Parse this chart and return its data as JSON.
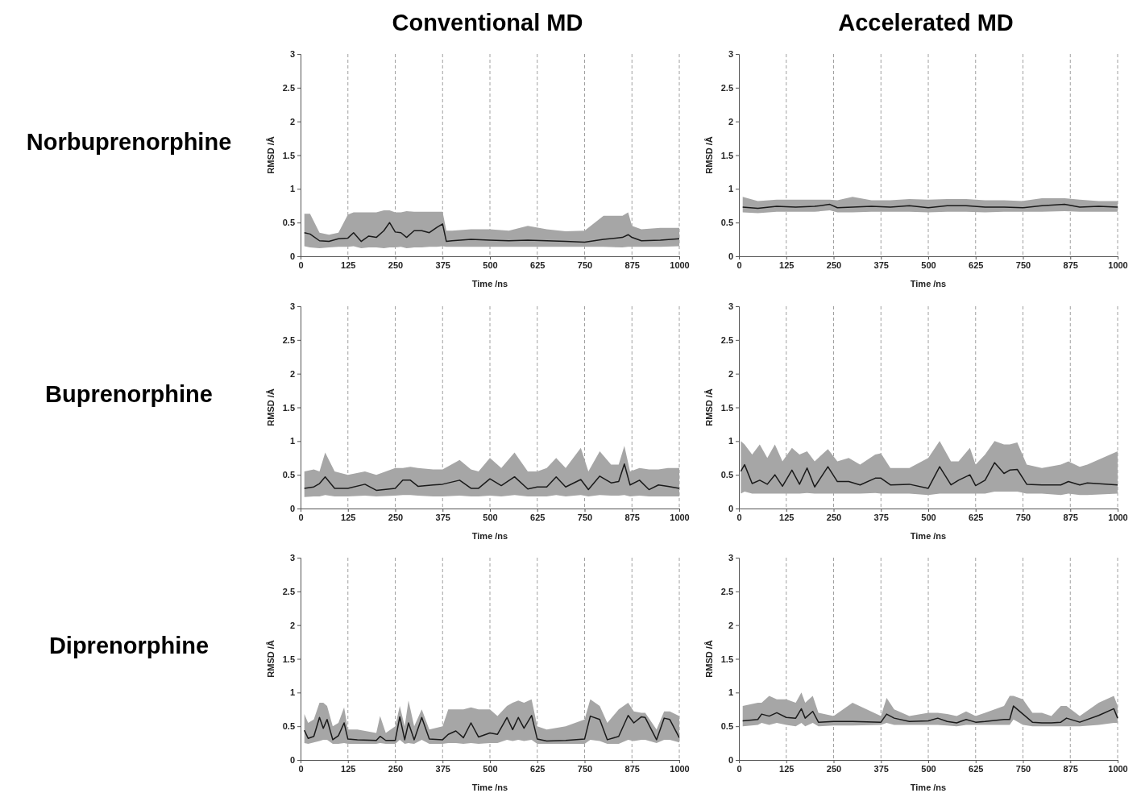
{
  "chart_data": [
    {
      "type": "line",
      "title": "Conventional MD",
      "annotations": [
        "Norbuprenorphine"
      ],
      "xlabel": "Time /ns",
      "ylabel": "RMSD /Å",
      "xlim": [
        0,
        1000
      ],
      "ylim": [
        0,
        3
      ],
      "xticks": [
        0,
        125,
        250,
        375,
        500,
        625,
        750,
        875,
        1000
      ],
      "yticks": [
        0,
        0.5,
        1,
        1.5,
        2,
        2.5,
        3
      ],
      "grid": "x",
      "x": [
        10,
        25,
        50,
        75,
        100,
        125,
        140,
        160,
        180,
        200,
        220,
        235,
        250,
        265,
        280,
        300,
        320,
        340,
        360,
        375,
        385,
        400,
        450,
        500,
        550,
        600,
        650,
        700,
        750,
        800,
        850,
        865,
        875,
        900,
        950,
        1000
      ],
      "series": [
        {
          "color": "#1a1a1a",
          "values": [
            0.35,
            0.33,
            0.23,
            0.22,
            0.26,
            0.27,
            0.35,
            0.22,
            0.3,
            0.28,
            0.38,
            0.5,
            0.36,
            0.35,
            0.28,
            0.38,
            0.38,
            0.35,
            0.43,
            0.48,
            0.22,
            0.23,
            0.25,
            0.24,
            0.23,
            0.24,
            0.23,
            0.22,
            0.21,
            0.25,
            0.28,
            0.32,
            0.28,
            0.23,
            0.24,
            0.26
          ],
          "lower": [
            0.15,
            0.13,
            0.12,
            0.13,
            0.14,
            0.14,
            0.15,
            0.12,
            0.13,
            0.13,
            0.12,
            0.13,
            0.13,
            0.14,
            0.12,
            0.13,
            0.13,
            0.14,
            0.14,
            0.15,
            0.14,
            0.14,
            0.14,
            0.14,
            0.14,
            0.14,
            0.14,
            0.14,
            0.14,
            0.14,
            0.13,
            0.14,
            0.14,
            0.14,
            0.14,
            0.15
          ],
          "upper": [
            0.63,
            0.63,
            0.35,
            0.32,
            0.35,
            0.62,
            0.65,
            0.65,
            0.65,
            0.65,
            0.68,
            0.68,
            0.65,
            0.65,
            0.67,
            0.66,
            0.66,
            0.66,
            0.66,
            0.66,
            0.38,
            0.38,
            0.4,
            0.4,
            0.38,
            0.45,
            0.4,
            0.37,
            0.38,
            0.6,
            0.6,
            0.65,
            0.45,
            0.4,
            0.42,
            0.42
          ]
        }
      ]
    },
    {
      "type": "line",
      "title": "Accelerated MD",
      "xlabel": "Time /ns",
      "ylabel": "RMSD /Å",
      "xlim": [
        0,
        1000
      ],
      "ylim": [
        0,
        3
      ],
      "xticks": [
        0,
        125,
        250,
        375,
        500,
        625,
        750,
        875,
        1000
      ],
      "yticks": [
        0,
        0.5,
        1,
        1.5,
        2,
        2.5,
        3
      ],
      "grid": "x",
      "x": [
        10,
        50,
        100,
        150,
        200,
        240,
        260,
        300,
        350,
        400,
        450,
        500,
        550,
        600,
        650,
        700,
        750,
        800,
        860,
        900,
        950,
        1000
      ],
      "series": [
        {
          "color": "#1a1a1a",
          "values": [
            0.73,
            0.71,
            0.74,
            0.73,
            0.74,
            0.77,
            0.72,
            0.73,
            0.74,
            0.73,
            0.75,
            0.72,
            0.75,
            0.75,
            0.73,
            0.73,
            0.72,
            0.75,
            0.77,
            0.73,
            0.74,
            0.73
          ],
          "lower": [
            0.65,
            0.64,
            0.66,
            0.66,
            0.66,
            0.68,
            0.65,
            0.65,
            0.66,
            0.66,
            0.66,
            0.65,
            0.66,
            0.66,
            0.65,
            0.66,
            0.66,
            0.66,
            0.67,
            0.66,
            0.66,
            0.66
          ],
          "upper": [
            0.88,
            0.82,
            0.84,
            0.84,
            0.84,
            0.84,
            0.83,
            0.88,
            0.83,
            0.83,
            0.85,
            0.84,
            0.85,
            0.85,
            0.83,
            0.83,
            0.82,
            0.86,
            0.86,
            0.84,
            0.82,
            0.82
          ]
        }
      ]
    },
    {
      "type": "line",
      "annotations": [
        "Buprenorphine"
      ],
      "xlabel": "Time /ns",
      "ylabel": "RMSD /Å",
      "xlim": [
        0,
        1000
      ],
      "ylim": [
        0,
        3
      ],
      "xticks": [
        0,
        125,
        250,
        375,
        500,
        625,
        750,
        875,
        1000
      ],
      "yticks": [
        0,
        0.5,
        1,
        1.5,
        2,
        2.5,
        3
      ],
      "grid": "x",
      "x": [
        10,
        35,
        50,
        65,
        90,
        125,
        170,
        200,
        250,
        270,
        290,
        310,
        350,
        375,
        420,
        450,
        470,
        500,
        530,
        565,
        600,
        625,
        650,
        675,
        700,
        740,
        760,
        790,
        820,
        840,
        855,
        870,
        895,
        920,
        945,
        970,
        1000
      ],
      "series": [
        {
          "color": "#1a1a1a",
          "values": [
            0.3,
            0.32,
            0.37,
            0.47,
            0.3,
            0.3,
            0.36,
            0.27,
            0.3,
            0.42,
            0.42,
            0.33,
            0.35,
            0.36,
            0.42,
            0.3,
            0.3,
            0.44,
            0.34,
            0.47,
            0.29,
            0.32,
            0.32,
            0.47,
            0.32,
            0.43,
            0.28,
            0.48,
            0.38,
            0.4,
            0.66,
            0.35,
            0.42,
            0.28,
            0.35,
            0.33,
            0.3
          ],
          "lower": [
            0.17,
            0.18,
            0.18,
            0.2,
            0.18,
            0.18,
            0.19,
            0.18,
            0.19,
            0.2,
            0.2,
            0.19,
            0.18,
            0.18,
            0.19,
            0.18,
            0.18,
            0.19,
            0.18,
            0.2,
            0.18,
            0.18,
            0.18,
            0.2,
            0.18,
            0.2,
            0.18,
            0.2,
            0.19,
            0.19,
            0.2,
            0.18,
            0.19,
            0.18,
            0.18,
            0.18,
            0.18
          ],
          "upper": [
            0.55,
            0.58,
            0.55,
            0.83,
            0.55,
            0.5,
            0.55,
            0.5,
            0.6,
            0.6,
            0.62,
            0.6,
            0.58,
            0.58,
            0.72,
            0.58,
            0.55,
            0.75,
            0.6,
            0.83,
            0.55,
            0.55,
            0.6,
            0.75,
            0.6,
            0.9,
            0.55,
            0.85,
            0.65,
            0.65,
            0.93,
            0.55,
            0.6,
            0.58,
            0.58,
            0.6,
            0.6
          ]
        }
      ]
    },
    {
      "type": "line",
      "xlabel": "Time /ns",
      "ylabel": "RMSD /Å",
      "xlim": [
        0,
        1000
      ],
      "ylim": [
        0,
        3
      ],
      "xticks": [
        0,
        125,
        250,
        375,
        500,
        625,
        750,
        875,
        1000
      ],
      "yticks": [
        0,
        0.5,
        1,
        1.5,
        2,
        2.5,
        3
      ],
      "grid": "x",
      "x": [
        5,
        15,
        35,
        55,
        75,
        95,
        115,
        140,
        160,
        180,
        200,
        235,
        260,
        290,
        320,
        360,
        375,
        400,
        450,
        500,
        530,
        560,
        580,
        610,
        625,
        650,
        675,
        700,
        715,
        735,
        760,
        800,
        850,
        870,
        900,
        920,
        1000
      ],
      "series": [
        {
          "color": "#1a1a1a",
          "values": [
            0.55,
            0.65,
            0.37,
            0.42,
            0.36,
            0.5,
            0.33,
            0.57,
            0.36,
            0.6,
            0.32,
            0.62,
            0.4,
            0.4,
            0.35,
            0.45,
            0.45,
            0.35,
            0.36,
            0.3,
            0.62,
            0.35,
            0.42,
            0.5,
            0.34,
            0.42,
            0.68,
            0.52,
            0.57,
            0.58,
            0.36,
            0.35,
            0.35,
            0.4,
            0.35,
            0.38,
            0.35
          ],
          "lower": [
            0.22,
            0.25,
            0.22,
            0.22,
            0.22,
            0.22,
            0.22,
            0.22,
            0.22,
            0.23,
            0.22,
            0.22,
            0.22,
            0.22,
            0.22,
            0.23,
            0.22,
            0.22,
            0.22,
            0.2,
            0.22,
            0.22,
            0.22,
            0.22,
            0.22,
            0.22,
            0.25,
            0.25,
            0.25,
            0.25,
            0.22,
            0.22,
            0.2,
            0.22,
            0.2,
            0.2,
            0.22
          ],
          "upper": [
            1.0,
            0.95,
            0.8,
            0.95,
            0.75,
            0.95,
            0.7,
            0.9,
            0.8,
            0.85,
            0.7,
            0.88,
            0.7,
            0.75,
            0.65,
            0.8,
            0.82,
            0.6,
            0.6,
            0.75,
            1.0,
            0.7,
            0.7,
            0.9,
            0.65,
            0.8,
            1.0,
            0.95,
            0.95,
            0.98,
            0.65,
            0.6,
            0.65,
            0.7,
            0.62,
            0.65,
            0.85
          ]
        }
      ]
    },
    {
      "type": "line",
      "annotations": [
        "Diprenorphine"
      ],
      "xlabel": "Time /ns",
      "ylabel": "RMSD /Å",
      "xlim": [
        0,
        1000
      ],
      "ylim": [
        0,
        3
      ],
      "xticks": [
        0,
        125,
        250,
        375,
        500,
        625,
        750,
        875,
        1000
      ],
      "yticks": [
        0,
        0.5,
        1,
        1.5,
        2,
        2.5,
        3
      ],
      "grid": "x",
      "x": [
        10,
        20,
        35,
        50,
        60,
        70,
        85,
        100,
        115,
        125,
        150,
        200,
        210,
        225,
        250,
        262,
        275,
        285,
        300,
        320,
        340,
        375,
        390,
        410,
        430,
        450,
        470,
        500,
        520,
        545,
        560,
        575,
        590,
        610,
        625,
        650,
        700,
        750,
        765,
        790,
        810,
        840,
        865,
        880,
        900,
        910,
        940,
        960,
        975,
        1000
      ],
      "series": [
        {
          "color": "#1a1a1a",
          "values": [
            0.44,
            0.32,
            0.35,
            0.63,
            0.47,
            0.6,
            0.3,
            0.36,
            0.55,
            0.31,
            0.3,
            0.29,
            0.35,
            0.29,
            0.29,
            0.64,
            0.3,
            0.55,
            0.3,
            0.63,
            0.31,
            0.3,
            0.38,
            0.43,
            0.33,
            0.55,
            0.34,
            0.4,
            0.38,
            0.63,
            0.45,
            0.63,
            0.47,
            0.66,
            0.31,
            0.28,
            0.29,
            0.31,
            0.65,
            0.6,
            0.3,
            0.35,
            0.66,
            0.55,
            0.64,
            0.63,
            0.3,
            0.62,
            0.6,
            0.33
          ],
          "lower": [
            0.25,
            0.24,
            0.26,
            0.28,
            0.3,
            0.3,
            0.24,
            0.24,
            0.25,
            0.24,
            0.24,
            0.24,
            0.25,
            0.24,
            0.24,
            0.3,
            0.24,
            0.25,
            0.24,
            0.3,
            0.24,
            0.24,
            0.25,
            0.25,
            0.24,
            0.25,
            0.24,
            0.25,
            0.25,
            0.3,
            0.28,
            0.3,
            0.28,
            0.3,
            0.24,
            0.24,
            0.24,
            0.24,
            0.3,
            0.28,
            0.24,
            0.24,
            0.3,
            0.28,
            0.3,
            0.3,
            0.25,
            0.3,
            0.3,
            0.26
          ],
          "upper": [
            0.68,
            0.55,
            0.6,
            0.85,
            0.85,
            0.8,
            0.5,
            0.55,
            0.78,
            0.45,
            0.45,
            0.4,
            0.65,
            0.4,
            0.5,
            0.8,
            0.5,
            0.88,
            0.5,
            0.75,
            0.45,
            0.5,
            0.75,
            0.75,
            0.75,
            0.78,
            0.75,
            0.75,
            0.65,
            0.8,
            0.85,
            0.88,
            0.85,
            0.9,
            0.5,
            0.45,
            0.5,
            0.6,
            0.9,
            0.8,
            0.55,
            0.75,
            0.85,
            0.72,
            0.7,
            0.7,
            0.45,
            0.72,
            0.72,
            0.65
          ]
        }
      ]
    },
    {
      "type": "line",
      "xlabel": "Time /ns",
      "ylabel": "RMSD /Å",
      "xlim": [
        0,
        1000
      ],
      "ylim": [
        0,
        3
      ],
      "xticks": [
        0,
        125,
        250,
        375,
        500,
        625,
        750,
        875,
        1000
      ],
      "yticks": [
        0,
        0.5,
        1,
        1.5,
        2,
        2.5,
        3
      ],
      "grid": "x",
      "x": [
        10,
        50,
        60,
        80,
        100,
        125,
        150,
        165,
        175,
        195,
        210,
        250,
        300,
        375,
        390,
        410,
        450,
        500,
        525,
        550,
        575,
        600,
        625,
        650,
        700,
        715,
        725,
        750,
        775,
        800,
        825,
        850,
        865,
        900,
        950,
        990,
        1000
      ],
      "series": [
        {
          "color": "#1a1a1a",
          "values": [
            0.58,
            0.6,
            0.68,
            0.65,
            0.7,
            0.63,
            0.62,
            0.76,
            0.62,
            0.72,
            0.56,
            0.57,
            0.57,
            0.56,
            0.68,
            0.62,
            0.57,
            0.58,
            0.62,
            0.57,
            0.55,
            0.6,
            0.56,
            0.57,
            0.6,
            0.6,
            0.8,
            0.68,
            0.56,
            0.55,
            0.55,
            0.56,
            0.62,
            0.56,
            0.66,
            0.76,
            0.62
          ],
          "lower": [
            0.5,
            0.52,
            0.55,
            0.52,
            0.55,
            0.52,
            0.5,
            0.55,
            0.5,
            0.55,
            0.5,
            0.51,
            0.51,
            0.52,
            0.55,
            0.52,
            0.52,
            0.52,
            0.52,
            0.51,
            0.5,
            0.52,
            0.52,
            0.52,
            0.52,
            0.52,
            0.6,
            0.52,
            0.5,
            0.5,
            0.5,
            0.5,
            0.5,
            0.5,
            0.52,
            0.55,
            0.55
          ],
          "upper": [
            0.8,
            0.85,
            0.85,
            0.95,
            0.9,
            0.9,
            0.85,
            1.0,
            0.85,
            0.95,
            0.7,
            0.65,
            0.85,
            0.65,
            0.92,
            0.75,
            0.65,
            0.7,
            0.7,
            0.68,
            0.65,
            0.72,
            0.65,
            0.7,
            0.8,
            0.95,
            0.95,
            0.9,
            0.7,
            0.7,
            0.65,
            0.8,
            0.8,
            0.65,
            0.85,
            0.95,
            0.8
          ]
        }
      ]
    }
  ]
}
